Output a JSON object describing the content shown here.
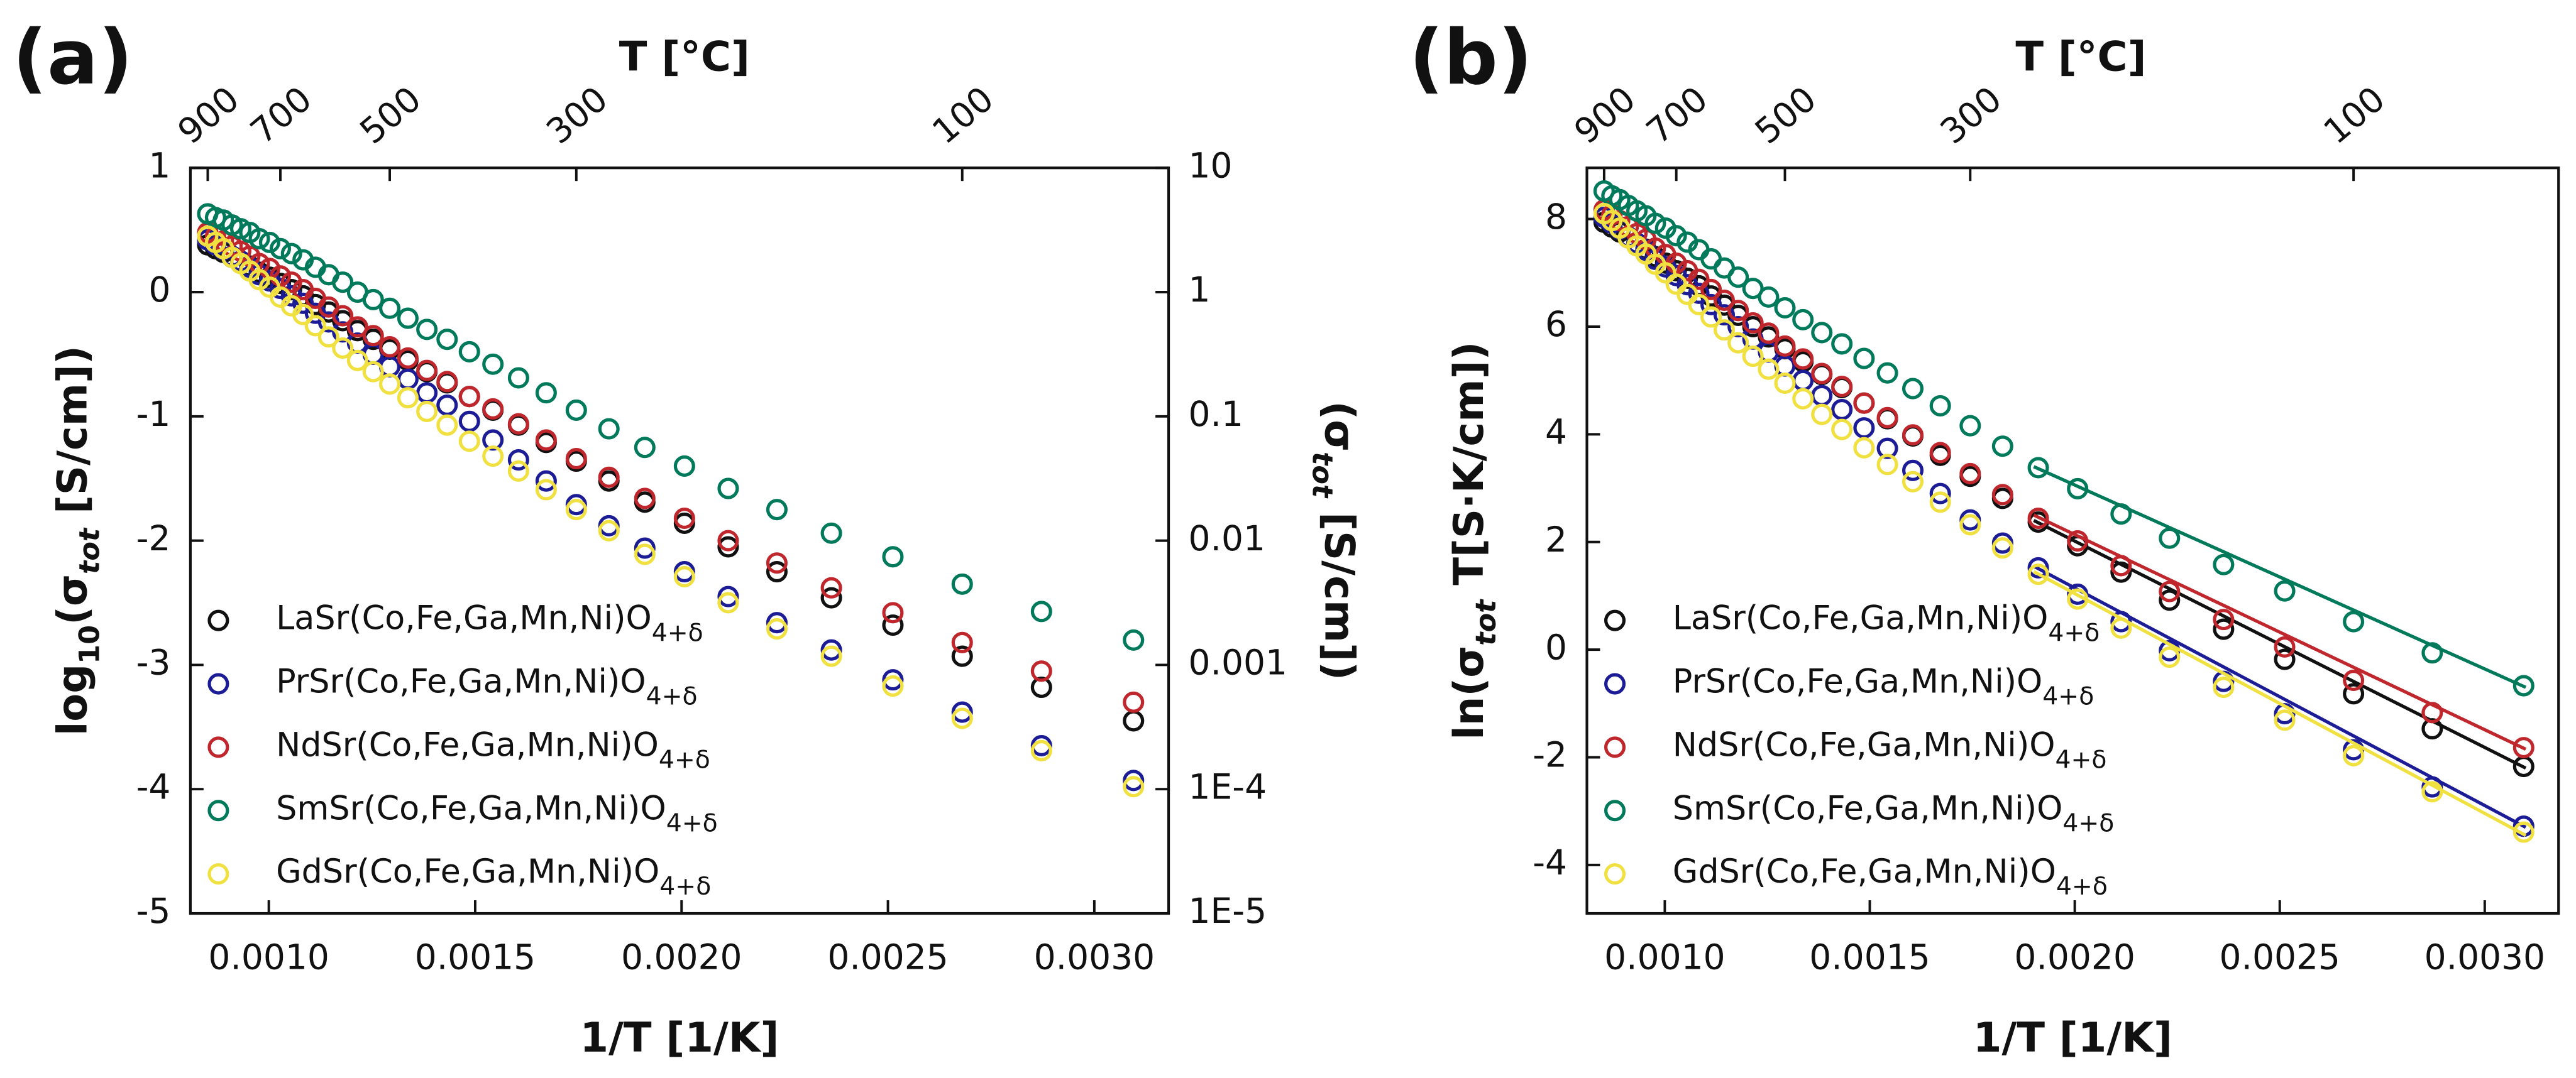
{
  "chart_data": [
    {
      "type": "scatter",
      "panel_label": "(a)",
      "x2label": "T [°C]",
      "xlabel": "1/T [1/K]",
      "ylabel": [
        "log",
        "10",
        "(σ",
        "tot",
        " [S/cm])"
      ],
      "y2label": [
        "(σ",
        "tot",
        " [S/cm])"
      ],
      "xlim": [
        0.00081,
        0.00318
      ],
      "ylim": [
        -5,
        1
      ],
      "y2lim": [
        1e-05,
        10
      ],
      "y2log": true,
      "xticks": [
        {
          "value": 0.001,
          "label": "0.0010"
        },
        {
          "value": 0.0015,
          "label": "0.0015"
        },
        {
          "value": 0.002,
          "label": "0.0020"
        },
        {
          "value": 0.0025,
          "label": "0.0025"
        },
        {
          "value": 0.003,
          "label": "0.0030"
        }
      ],
      "yticks": [
        -5,
        -4,
        -3,
        -2,
        -1,
        0,
        1
      ],
      "y2ticks": [
        10,
        1,
        0.1,
        0.01,
        0.001,
        {
          "value": 0.0001,
          "label": "1E-4"
        },
        {
          "value": 1e-05,
          "label": "1E-5"
        }
      ],
      "x2ticks": [
        {
          "value": 0.000852,
          "label": "900"
        },
        {
          "value": 0.001028,
          "label": "700"
        },
        {
          "value": 0.001293,
          "label": "500"
        },
        {
          "value": 0.001745,
          "label": "300"
        },
        {
          "value": 0.00268,
          "label": "100"
        }
      ],
      "legend": "lower left",
      "x": [
        0.000852,
        0.000871,
        0.00089,
        0.000911,
        0.000932,
        0.000954,
        0.000977,
        0.001002,
        0.001028,
        0.001055,
        0.001083,
        0.001113,
        0.001145,
        0.001179,
        0.001215,
        0.001253,
        0.001293,
        0.001337,
        0.001383,
        0.001432,
        0.001486,
        0.001543,
        0.001605,
        0.001672,
        0.001745,
        0.001824,
        0.001911,
        0.002007,
        0.002113,
        0.002231,
        0.002363,
        0.002512,
        0.00268,
        0.002872,
        0.003095
      ],
      "series": [
        {
          "name": "LaSr(Co,Fe,Ga,Mn,Ni)O4+δ",
          "color": "#111111",
          "values": [
            0.38,
            0.35,
            0.32,
            0.28,
            0.25,
            0.21,
            0.16,
            0.12,
            0.07,
            0.02,
            -0.03,
            -0.1,
            -0.16,
            -0.23,
            -0.31,
            -0.38,
            -0.46,
            -0.55,
            -0.64,
            -0.73,
            -0.84,
            -0.95,
            -1.07,
            -1.21,
            -1.36,
            -1.52,
            -1.69,
            -1.86,
            -2.05,
            -2.25,
            -2.46,
            -2.68,
            -2.93,
            -3.18,
            -3.45
          ]
        },
        {
          "name": "PrSr(Co,Fe,Ga,Mn,Ni)O4+δ",
          "color": "#1c1c96",
          "values": [
            0.42,
            0.38,
            0.34,
            0.29,
            0.25,
            0.2,
            0.14,
            0.09,
            0.03,
            -0.03,
            -0.09,
            -0.17,
            -0.24,
            -0.32,
            -0.41,
            -0.5,
            -0.6,
            -0.7,
            -0.81,
            -0.91,
            -1.04,
            -1.19,
            -1.35,
            -1.52,
            -1.71,
            -1.88,
            -2.06,
            -2.25,
            -2.45,
            -2.66,
            -2.88,
            -3.12,
            -3.38,
            -3.65,
            -3.93
          ]
        },
        {
          "name": "NdSr(Co,Fe,Ga,Mn,Ni)O4+δ",
          "color": "#c0272d",
          "values": [
            0.48,
            0.45,
            0.41,
            0.37,
            0.33,
            0.29,
            0.23,
            0.19,
            0.13,
            0.08,
            0.02,
            -0.05,
            -0.12,
            -0.19,
            -0.28,
            -0.35,
            -0.44,
            -0.53,
            -0.63,
            -0.72,
            -0.84,
            -0.94,
            -1.06,
            -1.19,
            -1.34,
            -1.49,
            -1.66,
            -1.82,
            -2.0,
            -2.18,
            -2.38,
            -2.58,
            -2.82,
            -3.05,
            -3.3
          ]
        },
        {
          "name": "SmSr(Co,Fe,Ga,Mn,Ni)O4+δ",
          "color": "#007a5a",
          "values": [
            0.63,
            0.6,
            0.58,
            0.54,
            0.51,
            0.48,
            0.43,
            0.4,
            0.35,
            0.31,
            0.26,
            0.2,
            0.14,
            0.08,
            0.0,
            -0.06,
            -0.13,
            -0.21,
            -0.3,
            -0.38,
            -0.48,
            -0.58,
            -0.69,
            -0.81,
            -0.95,
            -1.1,
            -1.25,
            -1.4,
            -1.58,
            -1.75,
            -1.94,
            -2.13,
            -2.35,
            -2.57,
            -2.8
          ]
        },
        {
          "name": "GdSr(Co,Fe,Ga,Mn,Ni)O4+δ",
          "color": "#f0e040",
          "values": [
            0.45,
            0.4,
            0.35,
            0.28,
            0.23,
            0.17,
            0.1,
            0.04,
            -0.04,
            -0.11,
            -0.18,
            -0.27,
            -0.36,
            -0.45,
            -0.55,
            -0.64,
            -0.74,
            -0.85,
            -0.96,
            -1.07,
            -1.2,
            -1.32,
            -1.44,
            -1.59,
            -1.75,
            -1.92,
            -2.11,
            -2.29,
            -2.5,
            -2.71,
            -2.93,
            -3.17,
            -3.43,
            -3.69,
            -3.98
          ]
        }
      ]
    },
    {
      "type": "scatter",
      "panel_label": "(b)",
      "x2label": "T [°C]",
      "xlabel": "1/T [1/K]",
      "ylabel": [
        "ln(σ",
        "tot",
        " T[S·K/cm])"
      ],
      "xlim": [
        0.00081,
        0.00318
      ],
      "ylim": [
        -4.9,
        8.95
      ],
      "xticks": [
        {
          "value": 0.001,
          "label": "0.0010"
        },
        {
          "value": 0.0015,
          "label": "0.0015"
        },
        {
          "value": 0.002,
          "label": "0.0020"
        },
        {
          "value": 0.0025,
          "label": "0.0025"
        },
        {
          "value": 0.003,
          "label": "0.0030"
        }
      ],
      "yticks": [
        -4,
        -2,
        0,
        2,
        4,
        6,
        8
      ],
      "x2ticks": [
        {
          "value": 0.000852,
          "label": "900"
        },
        {
          "value": 0.001028,
          "label": "700"
        },
        {
          "value": 0.001293,
          "label": "500"
        },
        {
          "value": 0.001745,
          "label": "300"
        },
        {
          "value": 0.00268,
          "label": "100"
        }
      ],
      "legend": "lower left",
      "x": [
        0.000852,
        0.000871,
        0.00089,
        0.000911,
        0.000932,
        0.000954,
        0.000977,
        0.001002,
        0.001028,
        0.001055,
        0.001083,
        0.001113,
        0.001145,
        0.001179,
        0.001215,
        0.001253,
        0.001293,
        0.001337,
        0.001383,
        0.001432,
        0.001486,
        0.001543,
        0.001605,
        0.001672,
        0.001745,
        0.001824,
        0.001911,
        0.002007,
        0.002113,
        0.002231,
        0.002363,
        0.002512,
        0.00268,
        0.002872,
        0.003095
      ],
      "fit_x": [
        0.0019,
        0.0031
      ],
      "series": [
        {
          "name": "LaSr(Co,Fe,Ga,Mn,Ni)O4+δ",
          "color": "#111111",
          "values": [
            7.94,
            7.85,
            7.76,
            7.65,
            7.55,
            7.44,
            7.3,
            7.18,
            7.04,
            6.9,
            6.76,
            6.57,
            6.4,
            6.21,
            6.0,
            5.81,
            5.59,
            5.35,
            5.11,
            4.87,
            4.58,
            4.29,
            3.97,
            3.61,
            3.22,
            2.81,
            2.37,
            1.93,
            1.44,
            0.92,
            0.38,
            -0.18,
            -0.82,
            -1.47,
            -2.17
          ],
          "fit": [
            2.4,
            -2.2
          ]
        },
        {
          "name": "PrSr(Co,Fe,Ga,Mn,Ni)O4+δ",
          "color": "#1c1c96",
          "values": [
            8.03,
            7.92,
            7.81,
            7.67,
            7.55,
            7.42,
            7.25,
            7.11,
            6.95,
            6.78,
            6.62,
            6.41,
            6.22,
            6.0,
            5.77,
            5.53,
            5.27,
            5.0,
            4.72,
            4.46,
            4.12,
            3.74,
            3.33,
            2.9,
            2.41,
            1.98,
            1.52,
            1.03,
            0.52,
            -0.02,
            -0.59,
            -1.19,
            -1.86,
            -2.55,
            -3.28
          ],
          "fit": [
            1.55,
            -3.3
          ]
        },
        {
          "name": "NdSr(Co,Fe,Ga,Mn,Ni)O4+δ",
          "color": "#c0272d",
          "values": [
            8.17,
            8.08,
            7.97,
            7.86,
            7.73,
            7.62,
            7.46,
            7.34,
            7.18,
            7.04,
            6.88,
            6.69,
            6.49,
            6.3,
            6.07,
            5.88,
            5.64,
            5.4,
            5.13,
            4.89,
            4.58,
            4.31,
            3.99,
            3.66,
            3.27,
            2.88,
            2.44,
            2.02,
            1.56,
            1.08,
            0.56,
            0.05,
            -0.57,
            -1.17,
            -1.82
          ],
          "fit": [
            2.5,
            -1.85
          ]
        },
        {
          "name": "SmSr(Co,Fe,Ga,Mn,Ni)O4+δ",
          "color": "#007a5a",
          "values": [
            8.52,
            8.43,
            8.36,
            8.25,
            8.15,
            8.06,
            7.92,
            7.83,
            7.69,
            7.57,
            7.43,
            7.26,
            7.09,
            6.92,
            6.71,
            6.55,
            6.35,
            6.13,
            5.89,
            5.68,
            5.41,
            5.14,
            4.85,
            4.53,
            4.16,
            3.78,
            3.38,
            2.99,
            2.52,
            2.07,
            1.58,
            1.09,
            0.52,
            -0.06,
            -0.67
          ],
          "fit": [
            3.4,
            -0.7
          ]
        },
        {
          "name": "GdSr(Co,Fe,Ga,Mn,Ni)O4+δ",
          "color": "#f0e040",
          "values": [
            8.1,
            7.97,
            7.83,
            7.65,
            7.5,
            7.35,
            7.16,
            7.0,
            6.79,
            6.6,
            6.41,
            6.18,
            5.94,
            5.7,
            5.45,
            5.21,
            4.95,
            4.66,
            4.37,
            4.09,
            3.75,
            3.44,
            3.12,
            2.74,
            2.32,
            1.89,
            1.4,
            0.94,
            0.4,
            -0.14,
            -0.7,
            -1.31,
            -1.97,
            -2.64,
            -3.39
          ],
          "fit": [
            1.45,
            -3.45
          ]
        }
      ]
    }
  ]
}
